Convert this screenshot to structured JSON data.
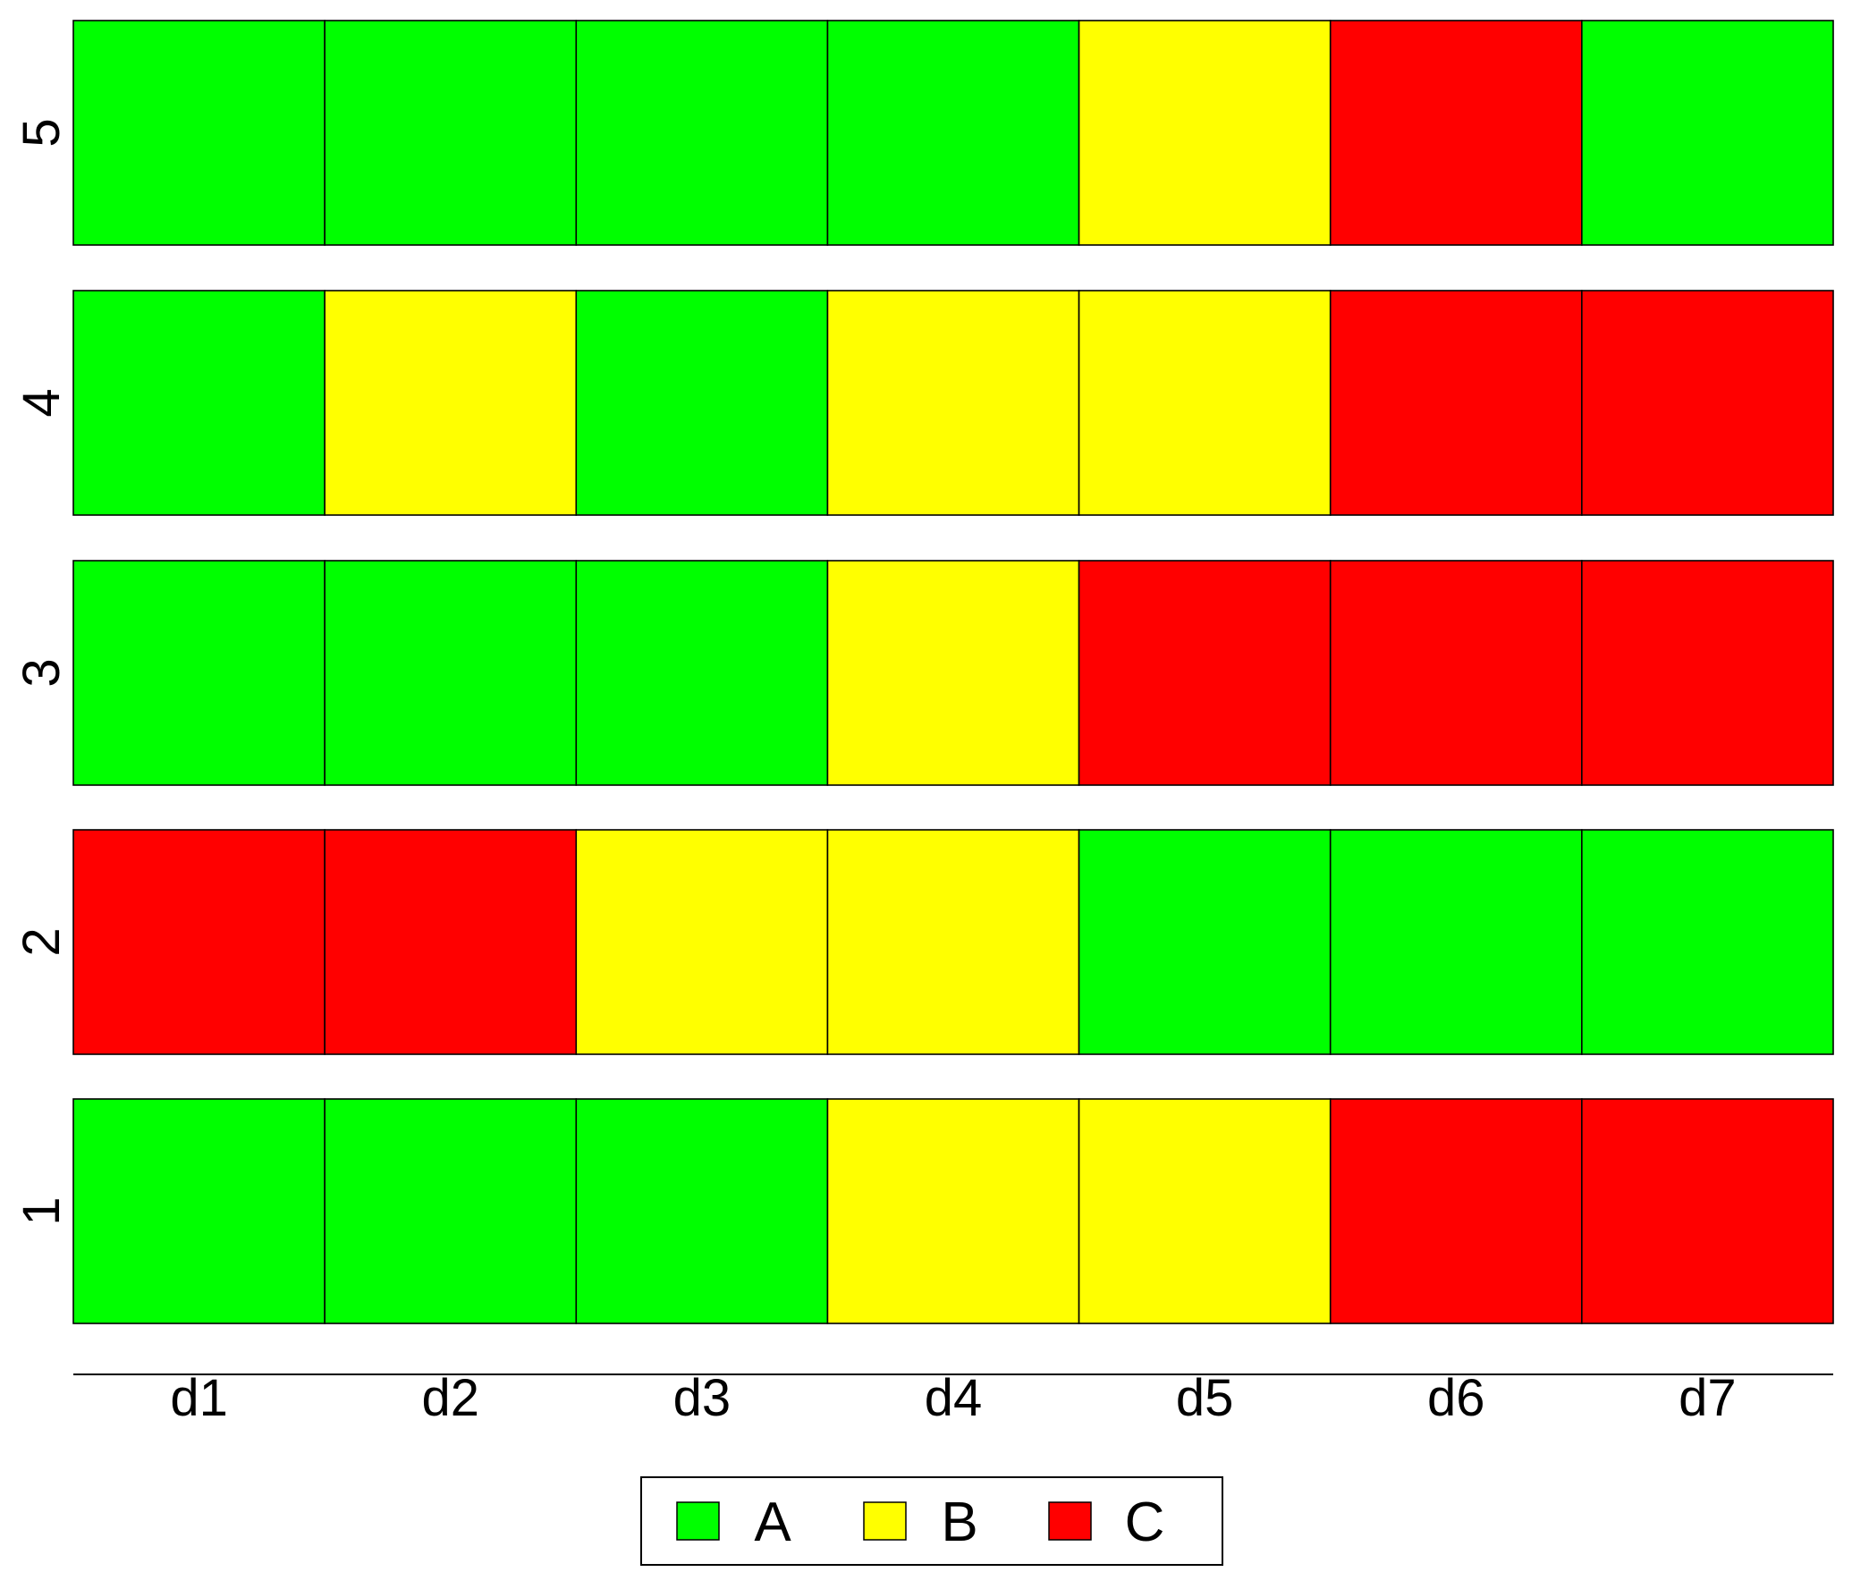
{
  "chart_data": {
    "type": "heatmap",
    "columns": [
      "d1",
      "d2",
      "d3",
      "d4",
      "d5",
      "d6",
      "d7"
    ],
    "rows": [
      "1",
      "2",
      "3",
      "4",
      "5"
    ],
    "values": [
      [
        "A",
        "A",
        "A",
        "B",
        "B",
        "C",
        "C"
      ],
      [
        "C",
        "C",
        "B",
        "B",
        "A",
        "A",
        "A"
      ],
      [
        "A",
        "A",
        "A",
        "B",
        "C",
        "C",
        "C"
      ],
      [
        "A",
        "B",
        "A",
        "B",
        "B",
        "C",
        "C"
      ],
      [
        "A",
        "A",
        "A",
        "A",
        "B",
        "C",
        "A"
      ]
    ],
    "categories": [
      "A",
      "B",
      "C"
    ],
    "colors": {
      "A": "#00ff00",
      "B": "#ffff00",
      "C": "#ff0000"
    },
    "legend": {
      "position": "bottom-center",
      "entries": [
        "A",
        "B",
        "C"
      ]
    },
    "grid": false
  }
}
